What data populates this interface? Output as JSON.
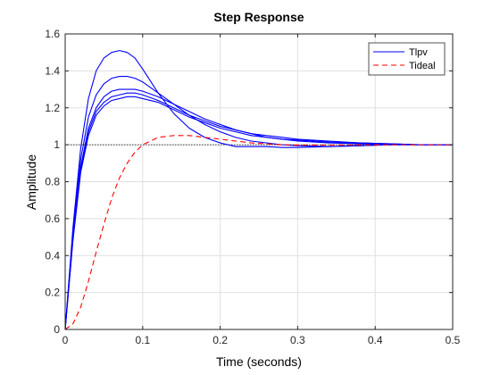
{
  "chart_data": {
    "type": "line",
    "title": "Step Response",
    "xlabel": "Time (seconds)",
    "ylabel": "Amplitude",
    "xlim": [
      0,
      0.5
    ],
    "ylim": [
      0,
      1.6
    ],
    "x_ticks": [
      0,
      0.1,
      0.2,
      0.3,
      0.4,
      0.5
    ],
    "x_tick_labels": [
      "0",
      "0.1",
      "0.2",
      "0.3",
      "0.4",
      "0.5"
    ],
    "y_ticks": [
      0,
      0.2,
      0.4,
      0.6,
      0.8,
      1,
      1.2,
      1.4,
      1.6
    ],
    "y_tick_labels": [
      "0",
      "0.2",
      "0.4",
      "0.6",
      "0.8",
      "1",
      "1.2",
      "1.4",
      "1.6"
    ],
    "grid": true,
    "legend_position": "top-right",
    "reference_line": {
      "y": 1,
      "style": "dotted",
      "color": "#000000"
    },
    "x": [
      0,
      0.01,
      0.02,
      0.03,
      0.04,
      0.05,
      0.06,
      0.07,
      0.08,
      0.09,
      0.1,
      0.12,
      0.14,
      0.16,
      0.18,
      0.2,
      0.22,
      0.24,
      0.26,
      0.28,
      0.3,
      0.34,
      0.38,
      0.42,
      0.46,
      0.5
    ],
    "series": [
      {
        "name": "Tlpv",
        "color": "#0000ff",
        "dash": "none",
        "values": [
          0,
          0.55,
          0.98,
          1.25,
          1.4,
          1.47,
          1.5,
          1.51,
          1.5,
          1.47,
          1.41,
          1.28,
          1.17,
          1.09,
          1.04,
          1.01,
          0.99,
          0.99,
          0.99,
          0.985,
          0.985,
          0.99,
          0.995,
          1.0,
          1.0,
          1.0
        ]
      },
      {
        "legend": false,
        "color": "#0000ff",
        "dash": "none",
        "values": [
          0,
          0.52,
          0.92,
          1.15,
          1.27,
          1.33,
          1.36,
          1.37,
          1.37,
          1.36,
          1.34,
          1.28,
          1.22,
          1.16,
          1.11,
          1.07,
          1.04,
          1.02,
          1.01,
          1.0,
          0.995,
          0.99,
          0.995,
          1.0,
          1.0,
          1.0
        ]
      },
      {
        "legend": false,
        "color": "#0000ff",
        "dash": "none",
        "values": [
          0,
          0.5,
          0.88,
          1.09,
          1.2,
          1.26,
          1.29,
          1.3,
          1.3,
          1.3,
          1.29,
          1.26,
          1.22,
          1.18,
          1.14,
          1.11,
          1.08,
          1.06,
          1.04,
          1.03,
          1.02,
          1.01,
          1.005,
          1.0,
          1.0,
          1.0
        ]
      },
      {
        "legend": false,
        "color": "#0000ff",
        "dash": "none",
        "values": [
          0,
          0.49,
          0.86,
          1.07,
          1.18,
          1.23,
          1.26,
          1.27,
          1.28,
          1.28,
          1.27,
          1.24,
          1.2,
          1.16,
          1.13,
          1.1,
          1.08,
          1.06,
          1.05,
          1.04,
          1.03,
          1.02,
          1.01,
          1.005,
          1.0,
          1.0
        ]
      },
      {
        "legend": false,
        "color": "#0000ff",
        "dash": "none",
        "values": [
          0,
          0.48,
          0.85,
          1.05,
          1.16,
          1.21,
          1.24,
          1.25,
          1.26,
          1.26,
          1.25,
          1.23,
          1.19,
          1.15,
          1.12,
          1.09,
          1.07,
          1.05,
          1.04,
          1.03,
          1.025,
          1.015,
          1.01,
          1.005,
          1.0,
          1.0
        ]
      },
      {
        "name": "Tideal",
        "color": "#ff0000",
        "dash": "6,4",
        "values": [
          0,
          0.03,
          0.12,
          0.26,
          0.42,
          0.57,
          0.71,
          0.82,
          0.9,
          0.96,
          1.0,
          1.04,
          1.05,
          1.05,
          1.04,
          1.03,
          1.02,
          1.01,
          1.005,
          1.0,
          0.998,
          0.998,
          0.999,
          1.0,
          1.0,
          1.0
        ]
      }
    ]
  }
}
